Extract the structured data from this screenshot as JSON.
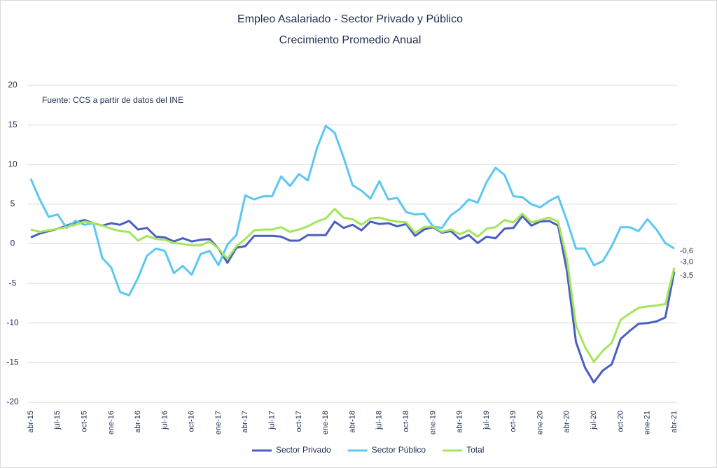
{
  "chart_data": {
    "type": "line",
    "title": "Empleo Asalariado - Sector Privado y Público",
    "subtitle": "Crecimiento Promedio Anual",
    "annotation": "Fuente: CCS a partir de datos del INE",
    "categories": [
      "abr-15",
      null,
      null,
      "jul-15",
      null,
      null,
      "oct-15",
      null,
      null,
      "ene-16",
      null,
      null,
      "abr-16",
      null,
      null,
      "jul-16",
      null,
      null,
      "oct-16",
      null,
      null,
      "ene-17",
      null,
      null,
      "abr-17",
      null,
      null,
      "jul-17",
      null,
      null,
      "oct-17",
      null,
      null,
      "ene-18",
      null,
      null,
      "abr-18",
      null,
      null,
      "jul-18",
      null,
      null,
      "oct-18",
      null,
      null,
      "ene-19",
      null,
      null,
      "abr-19",
      null,
      null,
      "jul-19",
      null,
      null,
      "oct-19",
      null,
      null,
      "ene-20",
      null,
      null,
      "abr-20",
      null,
      null,
      "jul-20",
      null,
      null,
      "oct-20",
      null,
      null,
      "ene-21",
      null,
      null,
      "abr-21"
    ],
    "ylim": [
      -20,
      20
    ],
    "yticks": [
      20,
      15,
      10,
      5,
      0,
      -5,
      -10,
      -15,
      -20
    ],
    "grid": true,
    "legend": "bottom",
    "series": [
      {
        "name": "Sector Privado",
        "color": "#4a5fc1",
        "values": [
          0.8,
          1.3,
          1.6,
          1.9,
          2.3,
          2.7,
          3.0,
          2.6,
          2.3,
          2.6,
          2.4,
          2.9,
          1.8,
          2.0,
          0.9,
          0.8,
          0.3,
          0.7,
          0.3,
          0.5,
          0.6,
          -0.6,
          -2.4,
          -0.5,
          -0.3,
          1.0,
          1.0,
          1.0,
          0.9,
          0.4,
          0.4,
          1.1,
          1.1,
          1.1,
          2.8,
          2.0,
          2.4,
          1.7,
          2.8,
          2.5,
          2.6,
          2.2,
          2.5,
          1.0,
          1.8,
          2.1,
          1.4,
          1.6,
          0.6,
          1.1,
          0.1,
          0.9,
          0.7,
          1.9,
          2.0,
          3.5,
          2.3,
          2.8,
          2.9,
          2.3,
          -3.5,
          -12.4,
          -15.6,
          -17.5,
          -16.0,
          -15.2,
          -12.0,
          -11.0,
          -10.1,
          -10.0,
          -9.8,
          -9.3,
          -3.5
        ],
        "value_labels": [
          null,
          null,
          null,
          null,
          null,
          null,
          null,
          null,
          null,
          null,
          null,
          null,
          null,
          null,
          null,
          null,
          null,
          null,
          null,
          null,
          null,
          null,
          null,
          null,
          null,
          null,
          null,
          null,
          null,
          null,
          null,
          null,
          null,
          null,
          null,
          null,
          null,
          null,
          null,
          null,
          null,
          null,
          null,
          null,
          null,
          null,
          null,
          null,
          null,
          null,
          null,
          null,
          null,
          null,
          null,
          null,
          null,
          null,
          null,
          null,
          null,
          null,
          null,
          null,
          null,
          null,
          null,
          null,
          null,
          null,
          null,
          null,
          "-3,5"
        ]
      },
      {
        "name": "Sector Público",
        "color": "#5bc8ef",
        "values": [
          8.2,
          5.6,
          3.4,
          3.7,
          2.0,
          2.9,
          2.4,
          2.6,
          -1.8,
          -3.0,
          -6.1,
          -6.5,
          -4.3,
          -1.5,
          -0.6,
          -0.9,
          -3.7,
          -2.8,
          -3.9,
          -1.3,
          -0.9,
          -2.7,
          -0.1,
          1.1,
          6.1,
          5.6,
          6.0,
          6.0,
          8.5,
          7.3,
          8.8,
          8.0,
          12.0,
          14.9,
          14.0,
          10.9,
          7.4,
          6.7,
          5.7,
          7.9,
          5.6,
          5.8,
          4.0,
          3.7,
          3.8,
          2.2,
          2.0,
          3.6,
          4.4,
          5.6,
          5.2,
          7.8,
          9.6,
          8.7,
          6.0,
          5.9,
          5.0,
          4.6,
          5.4,
          6.0,
          2.9,
          -0.6,
          -0.6,
          -2.7,
          -2.2,
          -0.3,
          2.1,
          2.1,
          1.6,
          3.1,
          1.8,
          0.1,
          -0.6
        ],
        "value_labels": [
          null,
          null,
          null,
          null,
          null,
          null,
          null,
          null,
          null,
          null,
          null,
          null,
          null,
          null,
          null,
          null,
          null,
          null,
          null,
          null,
          null,
          null,
          null,
          null,
          null,
          null,
          null,
          null,
          null,
          null,
          null,
          null,
          null,
          null,
          null,
          null,
          null,
          null,
          null,
          null,
          null,
          null,
          null,
          null,
          null,
          null,
          null,
          null,
          null,
          null,
          null,
          null,
          null,
          null,
          null,
          null,
          null,
          null,
          null,
          null,
          null,
          null,
          null,
          null,
          null,
          null,
          null,
          null,
          null,
          null,
          null,
          null,
          "-0,6"
        ]
      },
      {
        "name": "Total",
        "color": "#a4e65a",
        "values": [
          1.8,
          1.5,
          1.7,
          1.9,
          2.1,
          2.4,
          2.8,
          2.6,
          2.3,
          1.9,
          1.6,
          1.5,
          0.4,
          1.0,
          0.6,
          0.5,
          0.1,
          0.0,
          -0.2,
          -0.2,
          0.3,
          -0.6,
          -1.9,
          -0.3,
          0.6,
          1.7,
          1.8,
          1.8,
          2.1,
          1.5,
          1.8,
          2.2,
          2.8,
          3.2,
          4.4,
          3.3,
          3.1,
          2.4,
          3.2,
          3.3,
          3.0,
          2.8,
          2.7,
          1.4,
          2.1,
          2.2,
          1.5,
          1.8,
          1.2,
          1.7,
          0.9,
          1.9,
          2.1,
          3.0,
          2.7,
          3.8,
          2.7,
          3.0,
          3.3,
          2.8,
          -2.0,
          -10.3,
          -13.0,
          -14.9,
          -13.5,
          -12.5,
          -9.6,
          -8.8,
          -8.1,
          -7.9,
          -7.8,
          -7.6,
          -3.0
        ],
        "value_labels": [
          null,
          null,
          null,
          null,
          null,
          null,
          null,
          null,
          null,
          null,
          null,
          null,
          null,
          null,
          null,
          null,
          null,
          null,
          null,
          null,
          null,
          null,
          null,
          null,
          null,
          null,
          null,
          null,
          null,
          null,
          null,
          null,
          null,
          null,
          null,
          null,
          null,
          null,
          null,
          null,
          null,
          null,
          null,
          null,
          null,
          null,
          null,
          null,
          null,
          null,
          null,
          null,
          null,
          null,
          null,
          null,
          null,
          null,
          null,
          null,
          null,
          null,
          null,
          null,
          null,
          null,
          null,
          null,
          null,
          null,
          null,
          null,
          "-3,0"
        ]
      }
    ]
  }
}
